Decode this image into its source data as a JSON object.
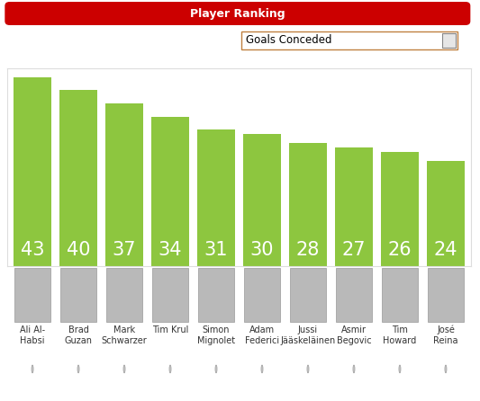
{
  "chart_data": {
    "type": "bar",
    "title": "Player Ranking",
    "subtitle": "Goals Conceded",
    "categories": [
      "Ali Al-Habsi",
      "Brad Guzan",
      "Mark Schwarzer",
      "Tim Krul",
      "Simon Mignolet",
      "Adam Federici",
      "Jussi Jääskeläinen",
      "Asmir Begovic",
      "Tim Howard",
      "José Reina"
    ],
    "values": [
      43,
      40,
      37,
      34,
      31,
      30,
      28,
      27,
      26,
      24
    ],
    "color": "#8dc63f",
    "ylim": [
      0,
      45
    ],
    "yticks": [],
    "tick_labels": false,
    "data_labels": true,
    "grid": false
  }
}
